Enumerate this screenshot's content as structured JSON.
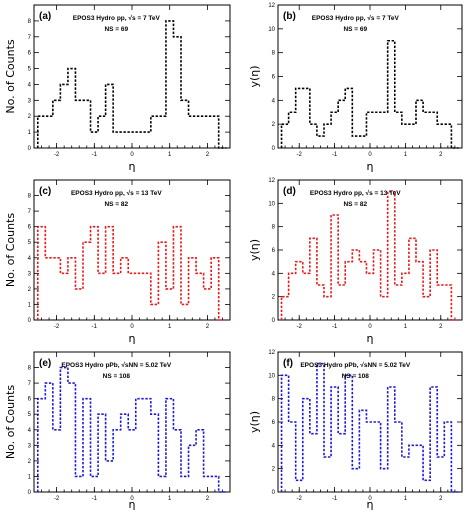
{
  "colors": {
    "black": "#000000",
    "red": "#e41a1c",
    "blue": "#1a1ad6"
  },
  "chart_data": [
    {
      "type": "histogram",
      "panel": "(a)",
      "annotation_line1": "EPOS3 Hydro pp, √s = 7 TeV",
      "annotation_line2": "NS = 69",
      "xlabel": "η",
      "ylabel": "No. of Counts",
      "xlim": [
        -2.6,
        2.6
      ],
      "ylim": [
        0,
        9
      ],
      "xticks": [
        -2,
        -1,
        0,
        1,
        2
      ],
      "yticks": [
        0,
        1,
        2,
        3,
        4,
        5,
        6,
        7,
        8
      ],
      "color": "#000000",
      "bin_edges": [
        -2.5,
        -2.3,
        -2.1,
        -1.9,
        -1.7,
        -1.5,
        -1.3,
        -1.1,
        -0.9,
        -0.7,
        -0.5,
        -0.3,
        -0.1,
        0.1,
        0.3,
        0.5,
        0.7,
        0.9,
        1.1,
        1.3,
        1.5,
        1.7,
        1.9,
        2.1,
        2.3,
        2.5
      ],
      "values": [
        2,
        2,
        3,
        4,
        5,
        3,
        3,
        1,
        2,
        4,
        1,
        1,
        1,
        1,
        1,
        2,
        2,
        8,
        7,
        3,
        2,
        2,
        2,
        2,
        0
      ]
    },
    {
      "type": "histogram",
      "panel": "(b)",
      "annotation_line1": "EPOS3 Hydro pp, √s = 7 TeV",
      "annotation_line2": "NS = 69",
      "xlabel": "η",
      "ylabel": "y(η)",
      "xlim": [
        -2.6,
        2.6
      ],
      "ylim": [
        0,
        12
      ],
      "xticks": [
        -2,
        -1,
        0,
        1,
        2
      ],
      "yticks": [
        0,
        2,
        4,
        6,
        8,
        10,
        12
      ],
      "color": "#000000",
      "bin_edges": [
        -2.5,
        -2.3,
        -2.1,
        -1.9,
        -1.7,
        -1.5,
        -1.3,
        -1.1,
        -0.9,
        -0.7,
        -0.5,
        -0.3,
        -0.1,
        0.1,
        0.3,
        0.5,
        0.7,
        0.9,
        1.1,
        1.3,
        1.5,
        1.7,
        1.9,
        2.1,
        2.3,
        2.5
      ],
      "values": [
        2,
        3,
        5,
        5,
        2,
        1,
        2,
        3,
        4,
        5,
        1,
        1,
        3,
        3,
        3,
        9,
        3,
        2,
        2,
        4,
        3,
        3,
        2,
        2,
        0
      ]
    },
    {
      "type": "histogram",
      "panel": "(c)",
      "annotation_line1": "EPOS3 Hydro pp, √s = 13 TeV",
      "annotation_line2": "NS = 82",
      "xlabel": "η",
      "ylabel": "No. of Counts",
      "xlim": [
        -2.6,
        2.6
      ],
      "ylim": [
        0,
        9
      ],
      "xticks": [
        -2,
        -1,
        0,
        1,
        2
      ],
      "yticks": [
        0,
        1,
        2,
        3,
        4,
        5,
        6,
        7,
        8
      ],
      "color": "#e41a1c",
      "bin_edges": [
        -2.5,
        -2.3,
        -2.1,
        -1.9,
        -1.7,
        -1.5,
        -1.3,
        -1.1,
        -0.9,
        -0.7,
        -0.5,
        -0.3,
        -0.1,
        0.1,
        0.3,
        0.5,
        0.7,
        0.9,
        1.1,
        1.3,
        1.5,
        1.7,
        1.9,
        2.1,
        2.3,
        2.5
      ],
      "values": [
        6,
        4,
        4,
        3,
        4,
        2,
        5,
        6,
        3,
        6,
        3,
        4,
        3,
        3,
        3,
        1,
        5,
        2,
        6,
        1,
        4,
        3,
        2,
        4,
        0
      ]
    },
    {
      "type": "histogram",
      "panel": "(d)",
      "annotation_line1": "EPOS3 Hydro pp, √s = 13 TeV",
      "annotation_line2": "NS = 82",
      "xlabel": "η",
      "ylabel": "y(η)",
      "xlim": [
        -2.6,
        2.6
      ],
      "ylim": [
        0,
        12
      ],
      "xticks": [
        -2,
        -1,
        0,
        1,
        2
      ],
      "yticks": [
        0,
        2,
        4,
        6,
        8,
        10,
        12
      ],
      "color": "#e41a1c",
      "bin_edges": [
        -2.5,
        -2.3,
        -2.1,
        -1.9,
        -1.7,
        -1.5,
        -1.3,
        -1.1,
        -0.9,
        -0.7,
        -0.5,
        -0.3,
        -0.1,
        0.1,
        0.3,
        0.5,
        0.7,
        0.9,
        1.1,
        1.3,
        1.5,
        1.7,
        1.9,
        2.1,
        2.3,
        2.5
      ],
      "values": [
        2,
        4,
        5,
        4,
        7,
        3,
        2,
        9,
        3,
        5,
        6,
        5,
        4,
        6,
        2,
        11,
        3,
        4,
        7,
        5,
        2,
        6,
        3,
        3,
        0
      ]
    },
    {
      "type": "histogram",
      "panel": "(e)",
      "annotation_line1": "EPOS3 Hydro pPb, √sNN = 5.02 TeV",
      "annotation_line2": "NS = 108",
      "xlabel": "η",
      "ylabel": "No. of Counts",
      "xlim": [
        -2.6,
        2.6
      ],
      "ylim": [
        0,
        9
      ],
      "xticks": [
        -2,
        -1,
        0,
        1,
        2
      ],
      "yticks": [
        0,
        1,
        2,
        3,
        4,
        5,
        6,
        7,
        8
      ],
      "color": "#1a1ad6",
      "bin_edges": [
        -2.5,
        -2.3,
        -2.1,
        -1.9,
        -1.7,
        -1.5,
        -1.3,
        -1.1,
        -0.9,
        -0.7,
        -0.5,
        -0.3,
        -0.1,
        0.1,
        0.3,
        0.5,
        0.7,
        0.9,
        1.1,
        1.3,
        1.5,
        1.7,
        1.9,
        2.1,
        2.3,
        2.5
      ],
      "values": [
        6,
        7,
        4,
        8,
        7,
        1,
        6,
        1,
        5,
        2,
        4,
        5,
        4,
        6,
        6,
        5,
        1,
        6,
        4,
        1,
        3,
        4,
        1,
        1,
        0
      ]
    },
    {
      "type": "histogram",
      "panel": "(f)",
      "annotation_line1": "EPOS3 Hydro pPb, √sNN = 5.02 TeV",
      "annotation_line2": "NS = 108",
      "xlabel": "η",
      "ylabel": "y(η)",
      "xlim": [
        -2.6,
        2.6
      ],
      "ylim": [
        0,
        12
      ],
      "xticks": [
        -2,
        -1,
        0,
        1,
        2
      ],
      "yticks": [
        0,
        2,
        4,
        6,
        8,
        10,
        12
      ],
      "color": "#1a1ad6",
      "bin_edges": [
        -2.5,
        -2.3,
        -2.1,
        -1.9,
        -1.7,
        -1.5,
        -1.3,
        -1.1,
        -0.9,
        -0.7,
        -0.5,
        -0.3,
        -0.1,
        0.1,
        0.3,
        0.5,
        0.7,
        0.9,
        1.1,
        1.3,
        1.5,
        1.7,
        1.9,
        2.1,
        2.3,
        2.5
      ],
      "values": [
        10,
        6,
        1,
        8,
        5,
        11,
        3,
        9,
        5,
        10,
        2,
        7,
        6,
        6,
        2,
        9,
        6,
        3,
        4,
        4,
        1,
        9,
        3,
        6,
        0
      ]
    }
  ]
}
